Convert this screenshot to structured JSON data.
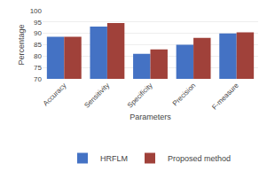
{
  "chart_data": {
    "type": "bar",
    "categories": [
      "Accuracy",
      "Sensitivity",
      "Specificity",
      "Precision",
      "F-measure"
    ],
    "series": [
      {
        "name": "HRFLM",
        "color": "#4472C4",
        "values": [
          88.5,
          93.0,
          81.0,
          85.0,
          90.0
        ]
      },
      {
        "name": "Proposed method",
        "color": "#A0413A",
        "values": [
          88.5,
          94.5,
          83.0,
          88.0,
          90.5
        ]
      }
    ],
    "xlabel": "Parameters",
    "ylabel": "Percentage",
    "ylim": [
      70,
      100
    ],
    "yticks": [
      70,
      75,
      80,
      85,
      90,
      95,
      100
    ],
    "grid": true,
    "legend": "bottom"
  }
}
